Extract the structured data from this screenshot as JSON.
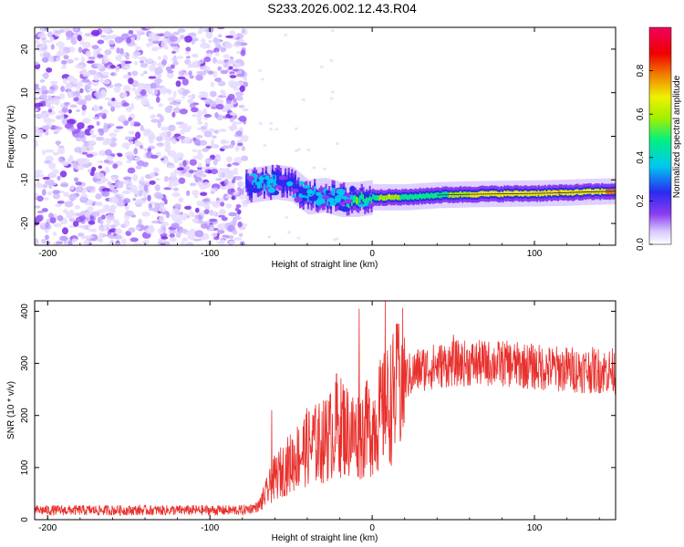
{
  "title": "S233.2026.002.12.43.R04",
  "chart_data": [
    {
      "type": "heatmap",
      "id": "spectrogram",
      "xlabel": "Height of straight line (km)",
      "ylabel": "Frequency (Hz)",
      "xlim": [
        -208,
        150
      ],
      "ylim": [
        -25,
        25
      ],
      "xticks": [
        -200,
        -100,
        0,
        100
      ],
      "yticks": [
        -20,
        -10,
        0,
        10,
        20
      ],
      "colorbar": {
        "label": "Normalized spectral amplitude",
        "range": [
          0,
          1
        ],
        "ticks": [
          "0.0",
          "0.2",
          "0.4",
          "0.6",
          "0.8"
        ],
        "colormap": [
          "#ffffff",
          "#d8c8ff",
          "#8a3cf0",
          "#2a2af0",
          "#00c8f0",
          "#00f080",
          "#a0f000",
          "#f0f000",
          "#f08000",
          "#f00000",
          "#f00060"
        ]
      },
      "noise_region_km": [
        -208,
        -78
      ],
      "signal": [
        {
          "x": -78,
          "f": -11.5,
          "a": 0.35
        },
        {
          "x": -70,
          "f": -11.0,
          "a": 0.45
        },
        {
          "x": -60,
          "f": -10.5,
          "a": 0.4
        },
        {
          "x": -50,
          "f": -11.0,
          "a": 0.35
        },
        {
          "x": -40,
          "f": -14.0,
          "a": 0.4
        },
        {
          "x": -30,
          "f": -13.5,
          "a": 0.45
        },
        {
          "x": -20,
          "f": -14.5,
          "a": 0.45
        },
        {
          "x": -10,
          "f": -14.5,
          "a": 0.6
        },
        {
          "x": 0,
          "f": -14.0,
          "a": 0.55
        },
        {
          "x": 10,
          "f": -14.0,
          "a": 0.7
        },
        {
          "x": 20,
          "f": -14.0,
          "a": 0.55
        },
        {
          "x": 40,
          "f": -13.5,
          "a": 0.55
        },
        {
          "x": 60,
          "f": -13.3,
          "a": 0.7
        },
        {
          "x": 80,
          "f": -13.2,
          "a": 0.75
        },
        {
          "x": 100,
          "f": -13.1,
          "a": 0.7
        },
        {
          "x": 115,
          "f": -13.0,
          "a": 0.8
        },
        {
          "x": 130,
          "f": -12.8,
          "a": 0.7
        },
        {
          "x": 150,
          "f": -12.6,
          "a": 0.85
        }
      ]
    },
    {
      "type": "line",
      "id": "snr",
      "xlabel": "Height of straight line (km)",
      "ylabel": "SNR (10 * v/v)",
      "xlim": [
        -208,
        150
      ],
      "ylim": [
        0,
        420
      ],
      "xticks": [
        -200,
        -100,
        0,
        100
      ],
      "yticks": [
        0,
        100,
        200,
        300,
        400
      ],
      "color": "#e8302c",
      "series_name": "SNR",
      "envelope": [
        {
          "x": -208,
          "y": 18
        },
        {
          "x": -80,
          "y": 18
        },
        {
          "x": -70,
          "y": 25
        },
        {
          "x": -60,
          "y": 80
        },
        {
          "x": -50,
          "y": 110
        },
        {
          "x": -40,
          "y": 140
        },
        {
          "x": -30,
          "y": 150
        },
        {
          "x": -20,
          "y": 180
        },
        {
          "x": -10,
          "y": 160
        },
        {
          "x": 0,
          "y": 180
        },
        {
          "x": 10,
          "y": 220
        },
        {
          "x": 20,
          "y": 270
        },
        {
          "x": 30,
          "y": 290
        },
        {
          "x": 50,
          "y": 300
        },
        {
          "x": 80,
          "y": 300
        },
        {
          "x": 110,
          "y": 290
        },
        {
          "x": 150,
          "y": 285
        }
      ],
      "spikes": [
        {
          "x": -62,
          "y": 210
        },
        {
          "x": -36,
          "y": 200
        },
        {
          "x": -28,
          "y": 230
        },
        {
          "x": -22,
          "y": 280
        },
        {
          "x": -18,
          "y": 260
        },
        {
          "x": -8,
          "y": 405
        },
        {
          "x": -4,
          "y": 255
        },
        {
          "x": 8,
          "y": 420
        },
        {
          "x": 16,
          "y": 330
        },
        {
          "x": 50,
          "y": 355
        }
      ]
    }
  ]
}
